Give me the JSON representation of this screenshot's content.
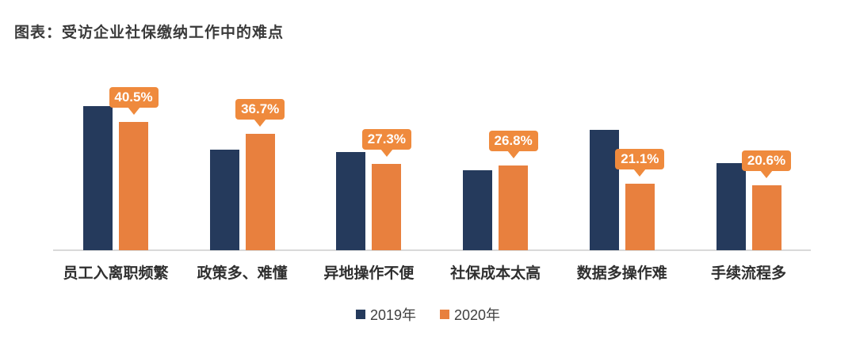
{
  "title": "图表：受访企业社保缴纳工作中的难点",
  "colors": {
    "series_2019": "#253a5c",
    "series_2020": "#e8803e",
    "callout_bg": "#ef8a3d",
    "callout_text": "#ffffff",
    "axis_line": "#d9d9d9",
    "title_text": "#3a3a3a",
    "category_text": "#2f2f2f",
    "legend_text": "#404040"
  },
  "chart_data": {
    "type": "bar",
    "title": "图表：受访企业社保缴纳工作中的难点",
    "categories": [
      "员工入离职频繁",
      "政策多、难懂",
      "异地操作不便",
      "社保成本太高",
      "数据多操作难",
      "手续流程多"
    ],
    "series": [
      {
        "name": "2019年",
        "color": "#253a5c",
        "values": [
          45.4,
          31.7,
          30.9,
          25.2,
          38.0,
          27.4
        ],
        "values_estimated": true,
        "labels_shown": false
      },
      {
        "name": "2020年",
        "color": "#e8803e",
        "values": [
          40.5,
          36.7,
          27.3,
          26.8,
          21.1,
          20.6
        ],
        "data_labels": [
          "40.5%",
          "36.7%",
          "27.3%",
          "26.8%",
          "21.1%",
          "20.6%"
        ],
        "labels_shown": true
      }
    ],
    "value_unit": "%",
    "ylim": [
      0,
      50
    ],
    "y_axis_visible": false,
    "gridlines": false,
    "legend_position": "bottom"
  },
  "legend": {
    "items": [
      {
        "label": "2019年",
        "color_key": "series_2019"
      },
      {
        "label": "2020年",
        "color_key": "series_2020"
      }
    ]
  }
}
